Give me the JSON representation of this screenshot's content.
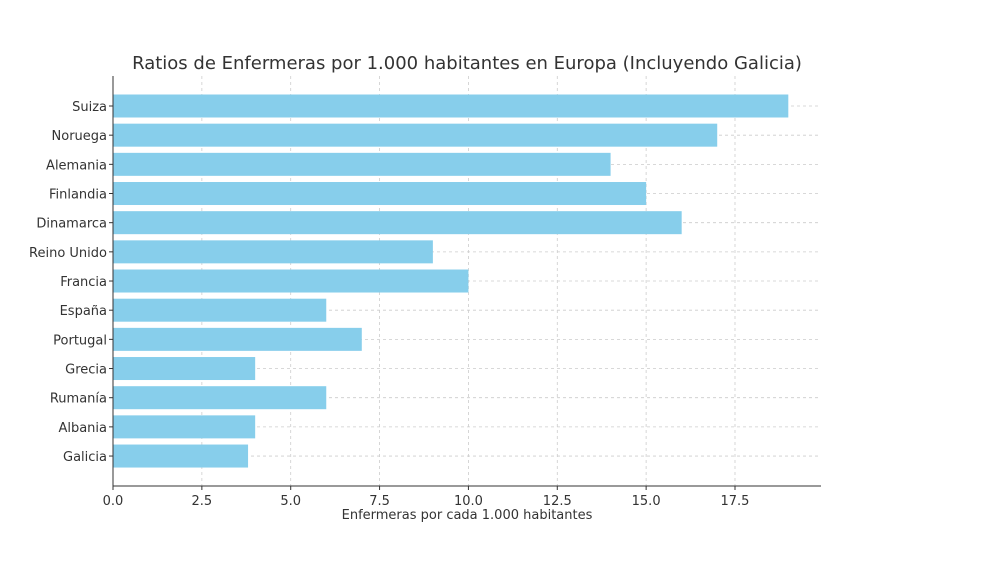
{
  "chart_data": {
    "type": "bar",
    "orientation": "horizontal",
    "title": "Ratios de Enfermeras por 1.000 habitantes en Europa (Incluyendo Galicia)",
    "xlabel": "Enfermeras por cada 1.000 habitantes",
    "ylabel": "",
    "categories": [
      "Suiza",
      "Noruega",
      "Alemania",
      "Finlandia",
      "Dinamarca",
      "Reino Unido",
      "Francia",
      "España",
      "Portugal",
      "Grecia",
      "Rumanía",
      "Albania",
      "Galicia"
    ],
    "values": [
      19,
      17,
      14,
      15,
      16,
      9,
      10,
      6,
      7,
      4,
      6,
      4,
      3.8
    ],
    "xlim": [
      0,
      19.92
    ],
    "xticks": [
      0,
      2.5,
      5,
      7.5,
      10,
      12.5,
      15,
      17.5
    ],
    "xtick_labels": [
      "0.0",
      "2.5",
      "5.0",
      "7.5",
      "10.0",
      "12.5",
      "15.0",
      "17.5"
    ],
    "grid": true,
    "bar_color": "#87ceeb"
  }
}
